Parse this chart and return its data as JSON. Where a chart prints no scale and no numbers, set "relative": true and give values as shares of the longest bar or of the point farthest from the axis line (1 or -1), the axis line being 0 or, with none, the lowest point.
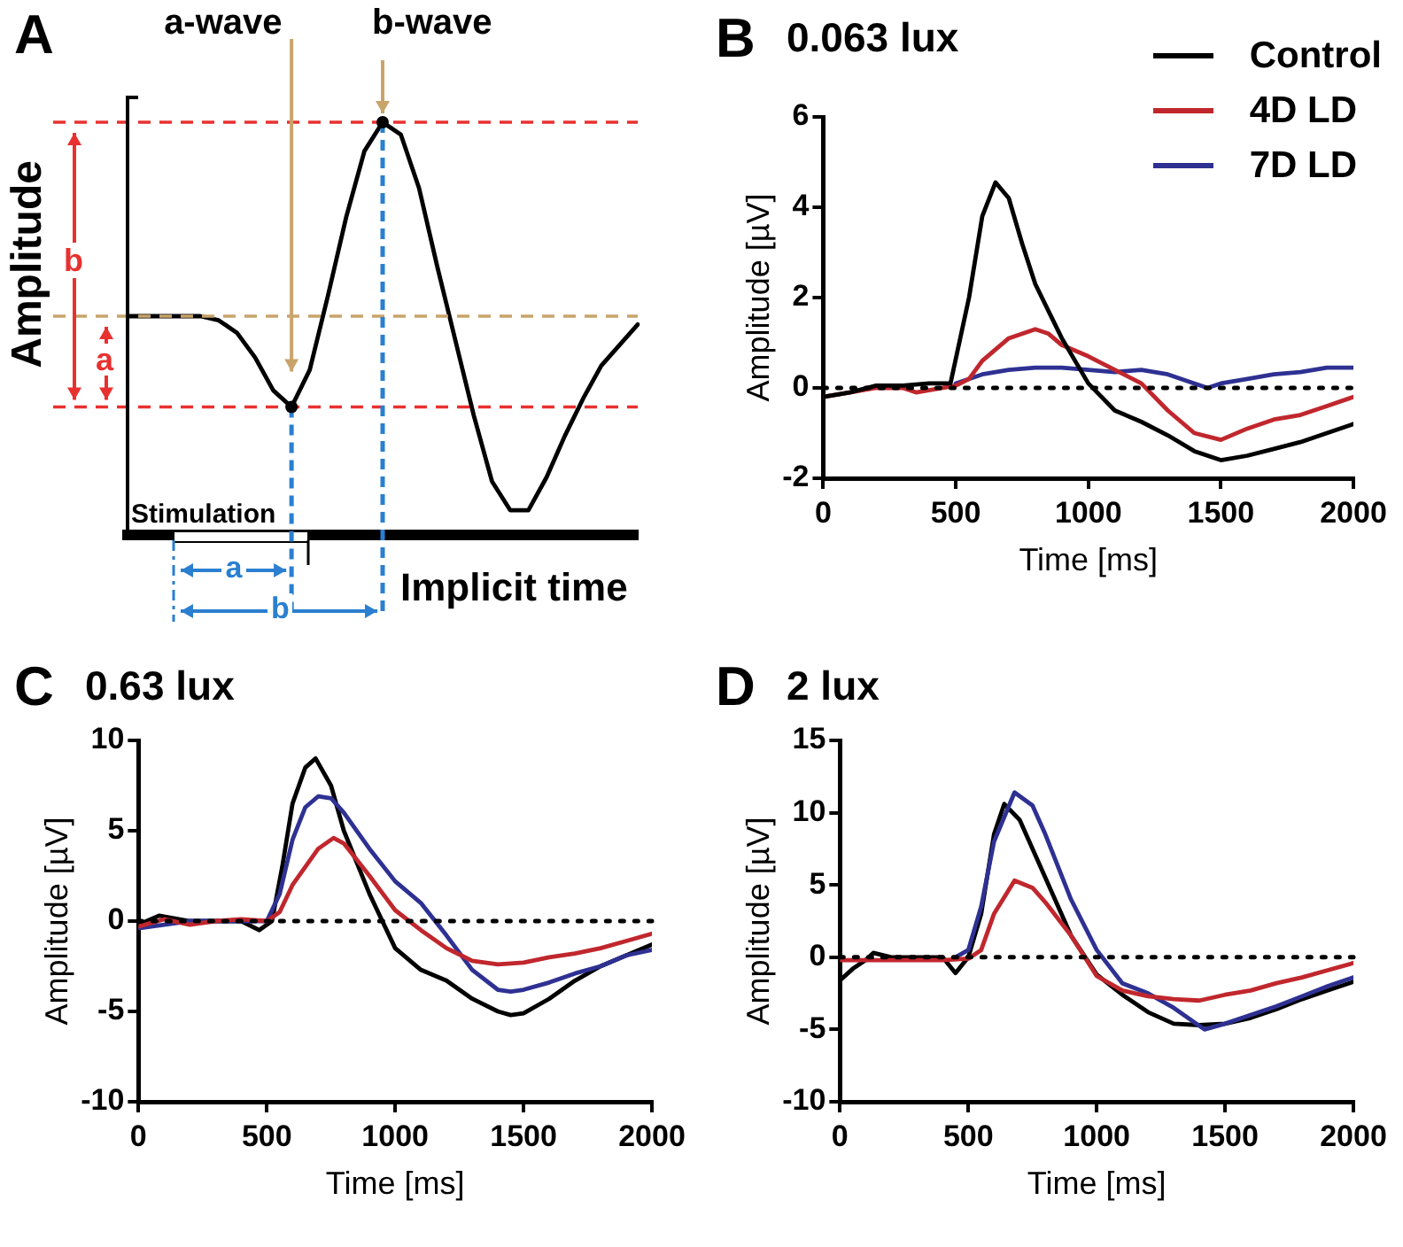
{
  "chart_data": [
    {
      "type": "line",
      "relative": true,
      "ylabel": "Amplitude",
      "xlabel": "Implicit time",
      "categories": [
        null,
        null,
        null,
        null,
        null,
        null,
        null,
        null,
        null,
        null,
        null,
        null,
        null,
        null,
        null,
        null,
        null,
        null,
        null,
        null,
        null,
        null,
        null,
        null,
        null,
        null,
        null,
        null,
        null
      ],
      "series": [
        {
          "color": "#000000",
          "values": [
            0.53,
            0.53,
            0.53,
            0.53,
            0.53,
            0.52,
            0.49,
            0.43,
            0.35,
            0.31,
            0.4,
            0.58,
            0.77,
            0.93,
            1,
            0.97,
            0.84,
            0.65,
            0.47,
            0.29,
            0.13,
            0.06,
            0.06,
            0.14,
            0.24,
            0.33,
            0.41,
            0.46,
            0.51
          ]
        }
      ],
      "ref_lines": [
        {
          "axis": "y",
          "value": 1,
          "color": "#e8312f",
          "line_style": "dashed"
        },
        {
          "axis": "y",
          "value": 0.31,
          "color": "#e8312f",
          "line_style": "dashed"
        },
        {
          "axis": "y",
          "value": 0.53,
          "color": "#c9a46a",
          "line_style": "dashed"
        }
      ],
      "annotations": [
        "A",
        "a-wave",
        "b-wave",
        "a",
        "b",
        "Stimulation",
        "a",
        "b"
      ],
      "legend": false
    },
    {
      "type": "line",
      "title": "0.063 lux",
      "xlabel": "Time [ms]",
      "ylabel": "Amplitude [µV]",
      "annotations": [
        "B"
      ],
      "legend": "top right",
      "xlim": [
        0,
        2000
      ],
      "xticks": [
        0,
        500,
        1000,
        1500,
        2000
      ],
      "ylim": [
        -2,
        6
      ],
      "yticks": [
        -2,
        0,
        2,
        4,
        6
      ],
      "ref_lines": [
        {
          "axis": "y",
          "value": 0,
          "color": "#000000",
          "line_style": "dotted"
        }
      ],
      "series": [
        {
          "name": "Control",
          "color": "#000000",
          "x": [
            0,
            100,
            200,
            300,
            400,
            480,
            550,
            600,
            650,
            700,
            750,
            800,
            900,
            1000,
            1100,
            1200,
            1300,
            1400,
            1500,
            1600,
            1700,
            1800,
            1900,
            2000
          ],
          "values": [
            -0.2,
            -0.1,
            0.05,
            0.05,
            0.1,
            0.1,
            2,
            3.8,
            4.55,
            4.2,
            3.2,
            2.3,
            1.1,
            0.1,
            -0.5,
            -0.75,
            -1.05,
            -1.4,
            -1.6,
            -1.5,
            -1.35,
            -1.2,
            -1,
            -0.8
          ]
        },
        {
          "name": "4D LD",
          "color": "#c0272d",
          "x": [
            0,
            100,
            200,
            300,
            350,
            500,
            550,
            600,
            700,
            800,
            850,
            900,
            1000,
            1100,
            1200,
            1300,
            1400,
            1500,
            1600,
            1700,
            1800,
            1900,
            2000
          ],
          "values": [
            -0.2,
            -0.1,
            0,
            0,
            -0.1,
            0.05,
            0.2,
            0.6,
            1.1,
            1.3,
            1.2,
            0.95,
            0.7,
            0.4,
            0.1,
            -0.5,
            -1,
            -1.15,
            -0.9,
            -0.7,
            -0.6,
            -0.4,
            -0.2
          ]
        },
        {
          "name": "7D LD",
          "color": "#2e3192",
          "x": [
            500,
            600,
            700,
            800,
            900,
            1000,
            1100,
            1200,
            1300,
            1400,
            1450,
            1500,
            1600,
            1700,
            1800,
            1900,
            2000
          ],
          "values": [
            0.1,
            0.3,
            0.4,
            0.45,
            0.45,
            0.4,
            0.35,
            0.4,
            0.3,
            0.1,
            0,
            0.1,
            0.2,
            0.3,
            0.35,
            0.45,
            0.45
          ]
        }
      ]
    },
    {
      "type": "line",
      "title": "0.63 lux",
      "xlabel": "Time [ms]",
      "ylabel": "Amplitude [µV]",
      "annotations": [
        "C"
      ],
      "legend": false,
      "xlim": [
        0,
        2000
      ],
      "xticks": [
        0,
        500,
        1000,
        1500,
        2000
      ],
      "ylim": [
        -10,
        10
      ],
      "yticks": [
        -10,
        -5,
        0,
        5,
        10
      ],
      "ref_lines": [
        {
          "axis": "y",
          "value": 0,
          "color": "#000000",
          "line_style": "dotted"
        }
      ],
      "series": [
        {
          "color": "#c0272d",
          "x": [
            0,
            100,
            200,
            300,
            400,
            500,
            550,
            600,
            700,
            760,
            800,
            900,
            1000,
            1100,
            1200,
            1300,
            1400,
            1500,
            1600,
            1700,
            1800,
            1900,
            2000
          ],
          "values": [
            -0.3,
            0.1,
            -0.2,
            0,
            0.1,
            0,
            0.5,
            2,
            4,
            4.6,
            4.3,
            2.5,
            0.6,
            -0.5,
            -1.5,
            -2.2,
            -2.4,
            -2.3,
            -2,
            -1.8,
            -1.5,
            -1.1,
            -0.7
          ]
        },
        {
          "color": "#2e3192",
          "x": [
            0,
            100,
            200,
            400,
            500,
            550,
            600,
            650,
            700,
            750,
            800,
            900,
            1000,
            1100,
            1200,
            1300,
            1400,
            1450,
            1500,
            1600,
            1700,
            1800,
            1900,
            2000
          ],
          "values": [
            -0.4,
            -0.2,
            0,
            0,
            0,
            1.5,
            4.5,
            6.3,
            6.9,
            6.8,
            6,
            4,
            2.2,
            1,
            -0.8,
            -2.7,
            -3.8,
            -3.9,
            -3.8,
            -3.4,
            -2.9,
            -2.5,
            -1.9,
            -1.6
          ]
        },
        {
          "color": "#000000",
          "x": [
            0,
            80,
            200,
            400,
            470,
            520,
            560,
            600,
            650,
            690,
            750,
            800,
            900,
            1000,
            1100,
            1200,
            1300,
            1400,
            1450,
            1500,
            1600,
            1700,
            1800,
            1900,
            2000
          ],
          "values": [
            -0.2,
            0.3,
            0,
            0,
            -0.5,
            0,
            3,
            6.5,
            8.5,
            9,
            7.5,
            5,
            1.5,
            -1.5,
            -2.7,
            -3.3,
            -4.3,
            -5,
            -5.2,
            -5.1,
            -4.3,
            -3.3,
            -2.5,
            -1.9,
            -1.3
          ]
        }
      ]
    },
    {
      "type": "line",
      "title": "2 lux",
      "xlabel": "Time [ms]",
      "ylabel": "Amplitude [µV]",
      "annotations": [
        "D"
      ],
      "legend": false,
      "xlim": [
        0,
        2000
      ],
      "xticks": [
        0,
        500,
        1000,
        1500,
        2000
      ],
      "ylim": [
        -10,
        15
      ],
      "yticks": [
        -10,
        -5,
        0,
        5,
        10,
        15
      ],
      "ref_lines": [
        {
          "axis": "y",
          "value": 0,
          "color": "#000000",
          "line_style": "dotted"
        }
      ],
      "series": [
        {
          "color": "#c0272d",
          "x": [
            0,
            400,
            500,
            550,
            600,
            680,
            750,
            800,
            900,
            1000,
            1100,
            1200,
            1300,
            1400,
            1500,
            1600,
            1700,
            1800,
            1900,
            2000
          ],
          "values": [
            -0.2,
            -0.2,
            -0.1,
            0.5,
            3,
            5.3,
            4.8,
            3.8,
            1.5,
            -1.3,
            -2.3,
            -2.7,
            -2.9,
            -3,
            -2.6,
            -2.3,
            -1.8,
            -1.4,
            -0.9,
            -0.4
          ]
        },
        {
          "color": "#2e3192",
          "x": [
            450,
            500,
            550,
            600,
            680,
            750,
            800,
            900,
            1000,
            1100,
            1200,
            1300,
            1420,
            1500,
            1600,
            1700,
            1800,
            1900,
            2000
          ],
          "values": [
            0,
            0.5,
            3.5,
            8,
            11.4,
            10.5,
            8.5,
            4,
            0.5,
            -1.8,
            -2.5,
            -3.5,
            -5,
            -4.6,
            -4,
            -3.4,
            -2.7,
            -2,
            -1.4
          ]
        },
        {
          "color": "#000000",
          "x": [
            0,
            50,
            100,
            130,
            200,
            400,
            450,
            500,
            550,
            600,
            640,
            700,
            800,
            900,
            1000,
            1100,
            1200,
            1300,
            1400,
            1500,
            1600,
            1700,
            1800,
            1900,
            2000
          ],
          "values": [
            -1.6,
            -0.8,
            -0.2,
            0.3,
            0,
            0,
            -1.1,
            0,
            3,
            8.5,
            10.6,
            9.5,
            5.5,
            1.5,
            -1.2,
            -2.6,
            -3.8,
            -4.6,
            -4.7,
            -4.6,
            -4.2,
            -3.6,
            -2.9,
            -2.3,
            -1.7
          ]
        }
      ]
    }
  ]
}
